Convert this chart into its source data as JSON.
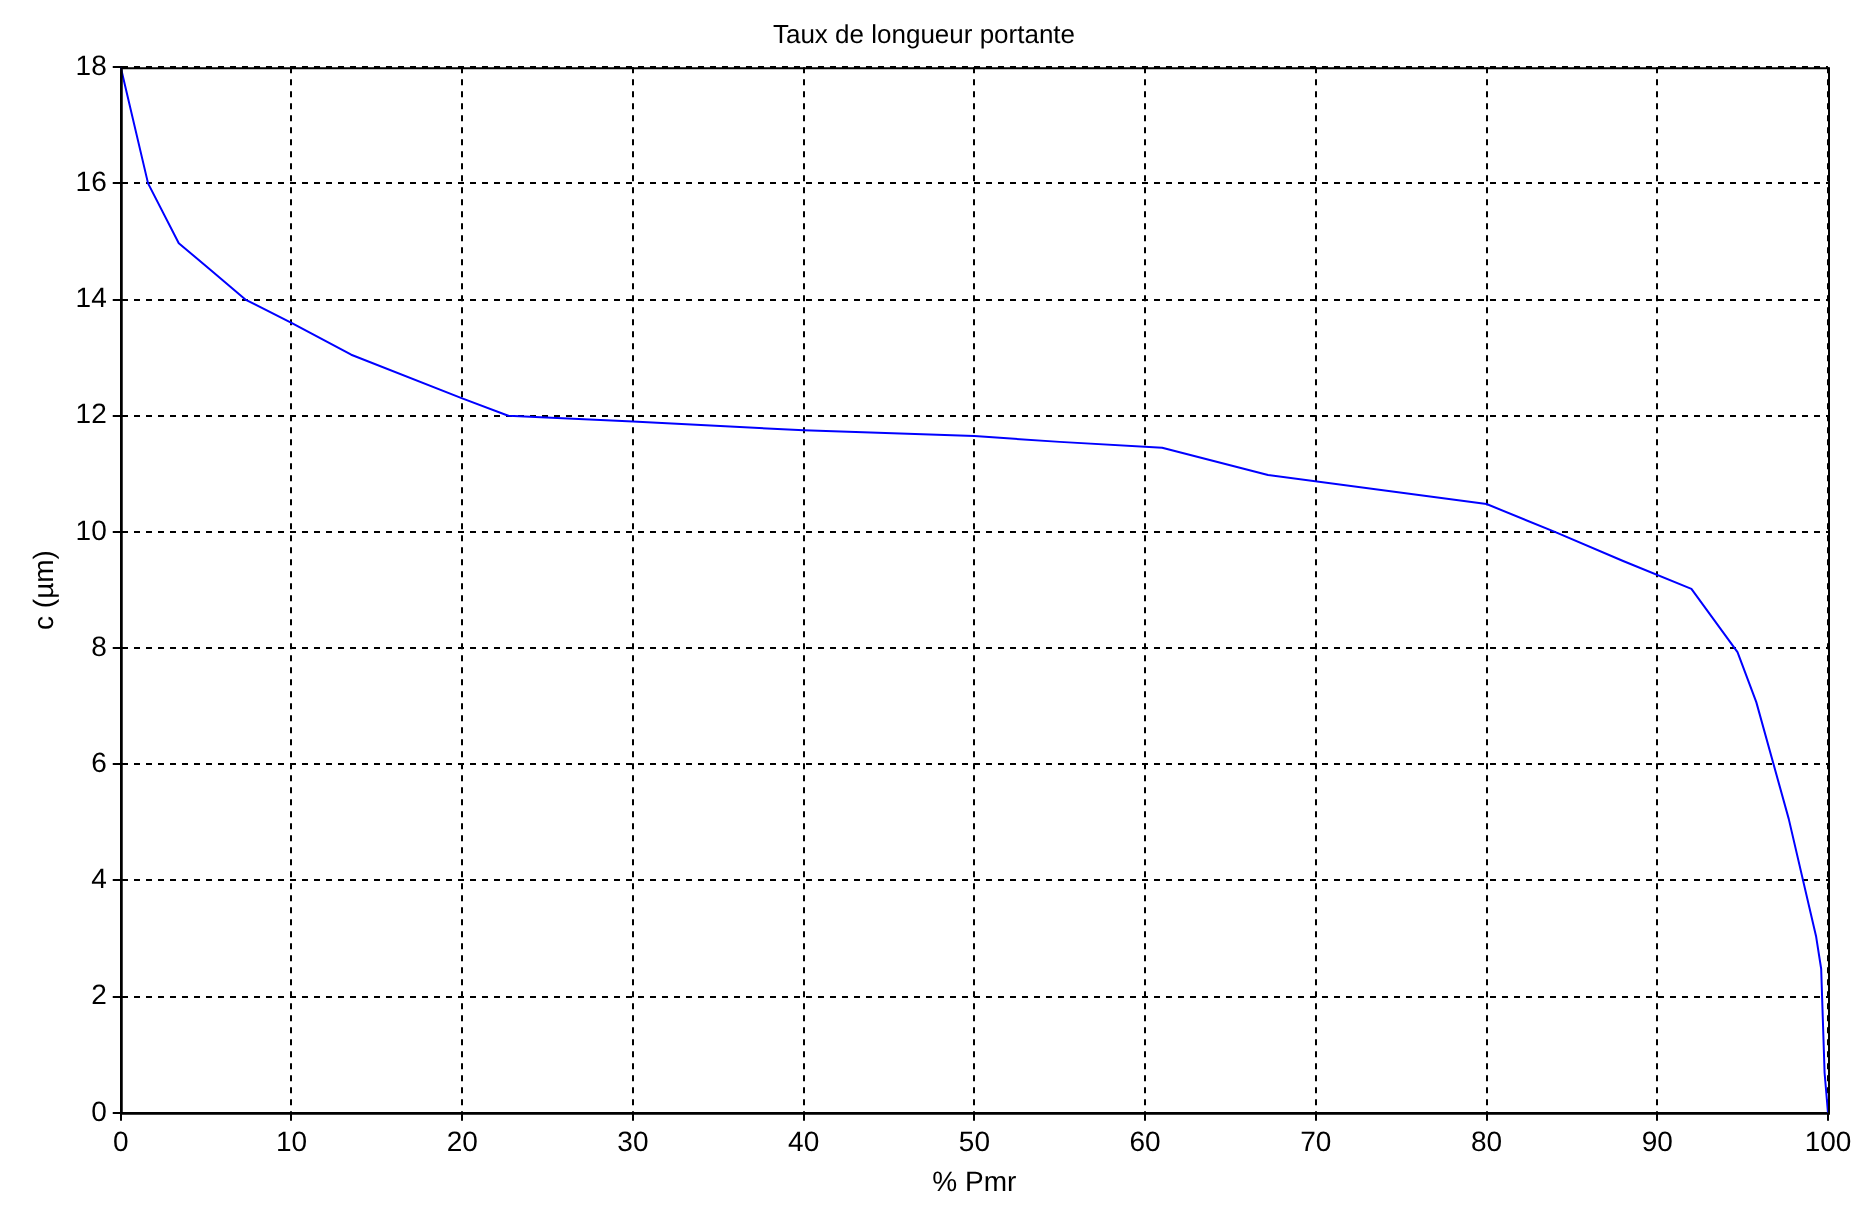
{
  "chart_data": {
    "type": "line",
    "title": "Taux de longueur portante",
    "xlabel": "% Pmr",
    "ylabel": "c (µm)",
    "series": [
      {
        "color": "#0000ff",
        "x": [
          0,
          1.6,
          3.4,
          5.3,
          7.3,
          10,
          13.5,
          20,
          22.7,
          30,
          40,
          50,
          55,
          61,
          67.2,
          80,
          84,
          88,
          92,
          94.7,
          95.8,
          97.7,
          99.3,
          99.6,
          99.8,
          100
        ],
        "values": [
          18,
          16,
          14.97,
          14.5,
          14,
          13.6,
          13.05,
          12.3,
          12,
          11.9,
          11.75,
          11.65,
          11.55,
          11.45,
          10.98,
          10.48,
          10,
          9.5,
          9.02,
          7.93,
          7.07,
          5.06,
          3.04,
          2.48,
          0.69,
          0
        ]
      }
    ],
    "xlim": [
      0,
      100
    ],
    "xticks": [
      0,
      10,
      20,
      30,
      40,
      50,
      60,
      70,
      80,
      90,
      100
    ],
    "ylim": [
      0,
      18
    ],
    "yticks": [
      0,
      2,
      4,
      6,
      8,
      10,
      12,
      14,
      16,
      18
    ],
    "grid": true,
    "legend": false,
    "marker": "none",
    "line_style": "solid"
  }
}
